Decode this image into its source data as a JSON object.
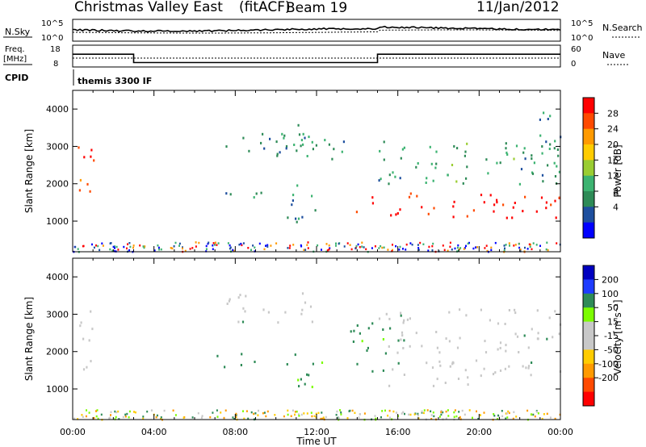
{
  "header": {
    "station": "Christmas Valley East",
    "fit": "(fitACF)",
    "beam": "Beam 19",
    "date": "11/Jan/2012"
  },
  "nsky": {
    "label": "N.Sky",
    "left_ticks": [
      "10^5",
      "10^0"
    ],
    "right_ticks": [
      "10^5",
      "10^0"
    ],
    "right_label": "N.Search"
  },
  "freq": {
    "label_line1": "Freq.",
    "label_line2": "[MHz]",
    "left_ticks": [
      "18",
      "8"
    ],
    "right_ticks": [
      "60",
      "0"
    ],
    "right_label": "Nave",
    "cpid_label": "CPID",
    "cpid_text": "themis 3300 IF"
  },
  "colorbar_power": {
    "label": "Power [dB]",
    "ticks": [
      "28",
      "24",
      "20",
      "16",
      "12",
      "8",
      "4"
    ],
    "colors": [
      "#ff0000",
      "#ff4a00",
      "#ff9a00",
      "#ffcc00",
      "#9acd32",
      "#3cb371",
      "#2e8b57",
      "#1e4f9e",
      "#0000ff"
    ]
  },
  "colorbar_velocity": {
    "label": "Velocity [m s⁻¹]",
    "ticks": [
      "200",
      "100",
      "50",
      "15",
      "-15",
      "-50",
      "-100",
      "-200"
    ],
    "colors": [
      "#0000c0",
      "#1e3cff",
      "#2e8b57",
      "#7cfc00",
      "#c8c8c8",
      "#c8c8c8",
      "#ffcc00",
      "#ff9a00",
      "#ff4a00",
      "#ff0000"
    ]
  },
  "chart_data": [
    {
      "type": "heatmap",
      "title": "Power",
      "ylabel": "Slant Range [km]",
      "xlabel": "Time UT",
      "x_ticks": [
        "00:00",
        "04:00",
        "08:00",
        "12:00",
        "16:00",
        "20:00",
        "00:00"
      ],
      "y_ticks": [
        1000,
        2000,
        3000,
        4000
      ],
      "xlim": [
        0,
        24
      ],
      "ylim": [
        180,
        4500
      ],
      "colorscale_db": [
        0,
        30
      ],
      "echo_regions": [
        {
          "t_start": 0.1,
          "t_end": 1.0,
          "range_low": 1500,
          "range_high": 3200,
          "power_db": 26
        },
        {
          "t_start": 7.0,
          "t_end": 9.3,
          "range_low": 1600,
          "range_high": 2000,
          "power_db": 9
        },
        {
          "t_start": 7.5,
          "t_end": 12.0,
          "range_low": 2800,
          "range_high": 3600,
          "power_db": 8
        },
        {
          "t_start": 10.0,
          "t_end": 14.0,
          "range_low": 2600,
          "range_high": 3300,
          "power_db": 10
        },
        {
          "t_start": 10.3,
          "t_end": 12.3,
          "range_low": 1000,
          "range_high": 2000,
          "power_db": 9
        },
        {
          "t_start": 13.5,
          "t_end": 24.0,
          "range_low": 1100,
          "range_high": 1800,
          "power_db": 28
        },
        {
          "t_start": 15.0,
          "t_end": 24.0,
          "range_low": 2000,
          "range_high": 3200,
          "power_db": 10
        },
        {
          "t_start": 22.5,
          "t_end": 24.0,
          "range_low": 2000,
          "range_high": 4200,
          "power_db": 8
        }
      ]
    },
    {
      "type": "heatmap",
      "title": "Velocity",
      "ylabel": "Slant Range [km]",
      "xlabel": "Time UT",
      "x_ticks": [
        "00:00",
        "04:00",
        "08:00",
        "12:00",
        "16:00",
        "20:00",
        "00:00"
      ],
      "y_ticks": [
        1000,
        2000,
        3000,
        4000
      ],
      "xlim": [
        0,
        24
      ],
      "ylim": [
        180,
        4500
      ],
      "colorscale_ms": [
        -200,
        200
      ],
      "echo_regions": [
        {
          "t_start": 0.1,
          "t_end": 1.0,
          "range_low": 1500,
          "range_high": 3200,
          "velocity": 0
        },
        {
          "t_start": 7.0,
          "t_end": 9.3,
          "range_low": 1600,
          "range_high": 2000,
          "velocity": 40
        },
        {
          "t_start": 7.5,
          "t_end": 12.0,
          "range_low": 2800,
          "range_high": 3600,
          "velocity": 0
        },
        {
          "t_start": 10.3,
          "t_end": 12.3,
          "range_low": 1000,
          "range_high": 2000,
          "velocity": 40
        },
        {
          "t_start": 13.5,
          "t_end": 16.0,
          "range_low": 1500,
          "range_high": 2800,
          "velocity": 30
        },
        {
          "t_start": 15.5,
          "t_end": 24.0,
          "range_low": 1100,
          "range_high": 1800,
          "velocity": 0
        },
        {
          "t_start": 15.0,
          "t_end": 24.0,
          "range_low": 2000,
          "range_high": 3200,
          "velocity": 0
        }
      ]
    },
    {
      "type": "line",
      "title": "N.Sky / N.Search",
      "series": [],
      "ylim": [
        0,
        5
      ]
    },
    {
      "type": "line",
      "title": "Frequency / Nave",
      "freq_segments": [
        {
          "t_start": 0.0,
          "t_end": 3.0,
          "freq_mhz": 14
        },
        {
          "t_start": 3.0,
          "t_end": 15.0,
          "freq_mhz": 9.5
        },
        {
          "t_start": 15.0,
          "t_end": 24.0,
          "freq_mhz": 14
        }
      ],
      "ylim": [
        8,
        18
      ]
    }
  ]
}
